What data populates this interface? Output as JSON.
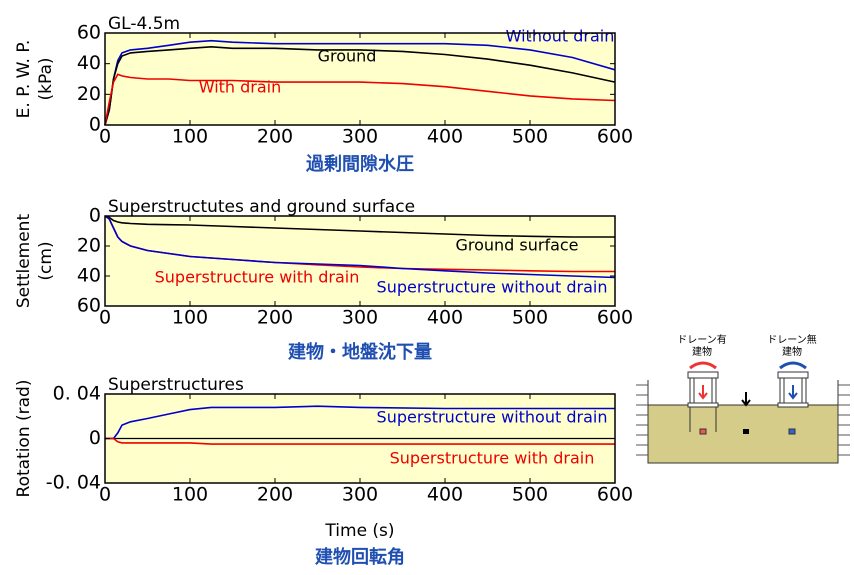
{
  "chart_data": [
    {
      "type": "line",
      "title": "GL-4.5m",
      "subtitle": "過剰間隙水圧",
      "ylabel": [
        "E. P. W. P.",
        "(kPa)"
      ],
      "x": [
        0,
        5,
        10,
        15,
        20,
        30,
        50,
        75,
        100,
        125,
        150,
        200,
        250,
        300,
        350,
        400,
        450,
        500,
        550,
        600
      ],
      "series": [
        {
          "name": "Without drain",
          "color": "#0000cc",
          "values": [
            0,
            10,
            30,
            42,
            47,
            49,
            50,
            52,
            54,
            55,
            54,
            53,
            53,
            53,
            53,
            53,
            52,
            49,
            44,
            36
          ]
        },
        {
          "name": "Ground",
          "color": "#000000",
          "values": [
            0,
            10,
            30,
            40,
            45,
            47,
            48,
            49,
            50,
            51,
            50,
            50,
            49,
            49,
            48,
            46,
            43,
            39,
            34,
            28
          ]
        },
        {
          "name": "With drain",
          "color": "#ee0000",
          "values": [
            0,
            15,
            28,
            33,
            32,
            31,
            30,
            30,
            29,
            29,
            29,
            28,
            28,
            28,
            27,
            25,
            22,
            19,
            17,
            16
          ]
        }
      ],
      "xlim": [
        0,
        600
      ],
      "xticks": [
        0,
        100,
        200,
        300,
        400,
        500,
        600
      ],
      "ylim": [
        0,
        60
      ],
      "yticks": [
        0,
        20,
        40,
        60
      ]
    },
    {
      "type": "line",
      "title": "Superstructutes and ground surface",
      "subtitle": "建物・地盤沈下量",
      "ylabel": [
        "Settlement",
        "(cm)"
      ],
      "x": [
        0,
        5,
        10,
        15,
        20,
        30,
        50,
        75,
        100,
        150,
        200,
        250,
        300,
        350,
        400,
        450,
        500,
        550,
        600
      ],
      "series": [
        {
          "name": "Ground surface",
          "color": "#000000",
          "values": [
            0,
            1,
            3,
            4,
            4.5,
            5,
            5.5,
            5.8,
            6,
            7,
            8,
            9,
            10,
            11,
            12,
            13,
            13.5,
            14,
            14
          ]
        },
        {
          "name": "Superstructure with drain",
          "color": "#ee0000",
          "values": [
            0,
            2,
            8,
            14,
            17,
            20,
            23,
            25,
            27,
            29,
            31,
            32.5,
            34,
            35,
            35.5,
            36,
            36.5,
            37,
            37
          ]
        },
        {
          "name": "Superstructure without drain",
          "color": "#0000cc",
          "values": [
            0,
            2,
            8,
            14,
            17,
            20,
            23,
            25,
            27,
            29,
            31,
            32,
            33,
            35,
            36.5,
            38,
            39,
            40,
            41
          ]
        }
      ],
      "xlim": [
        0,
        600
      ],
      "xticks": [
        0,
        100,
        200,
        300,
        400,
        500,
        600
      ],
      "ylim": [
        0,
        60
      ],
      "yticks": [
        0,
        20,
        40,
        60
      ],
      "y_inverted": true
    },
    {
      "type": "line",
      "title": "Superstructures",
      "subtitle": "建物回転角",
      "ylabel": "Rotation (rad)",
      "xlabel": "Time (s)",
      "x": [
        0,
        10,
        15,
        20,
        30,
        50,
        75,
        100,
        125,
        150,
        200,
        250,
        300,
        400,
        500,
        600
      ],
      "series": [
        {
          "name": "Superstructure without drain",
          "color": "#0000cc",
          "values": [
            0,
            0,
            0.005,
            0.012,
            0.015,
            0.018,
            0.022,
            0.026,
            0.028,
            0.028,
            0.028,
            0.029,
            0.028,
            0.027,
            0.027,
            0.027
          ]
        },
        {
          "name": "Superstructure with drain",
          "color": "#ee0000",
          "values": [
            0,
            0,
            -0.003,
            -0.004,
            -0.004,
            -0.004,
            -0.004,
            -0.004,
            -0.005,
            -0.005,
            -0.005,
            -0.005,
            -0.005,
            -0.005,
            -0.005,
            -0.005
          ]
        }
      ],
      "xlim": [
        0,
        600
      ],
      "xticks": [
        0,
        100,
        200,
        300,
        400,
        500,
        600
      ],
      "ylim": [
        -0.04,
        0.04
      ],
      "yticks": [
        {
          "value": -0.04,
          "label": "-0. 04"
        },
        0,
        {
          "value": 0.04,
          "label": "0. 04"
        }
      ]
    }
  ],
  "diagram": {
    "labels": [
      "ドレーン有",
      "建物",
      "ドレーン無",
      "建物"
    ]
  }
}
